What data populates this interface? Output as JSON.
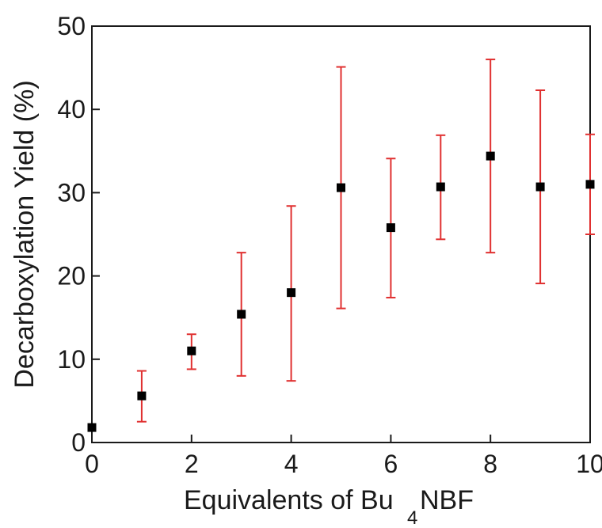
{
  "chart_data": {
    "type": "scatter",
    "title": "",
    "xlabel_main": "Equivalents of Bu",
    "xlabel_sub": "4",
    "xlabel_tail": "NBF",
    "ylabel": "Decarboxylation Yield (%)",
    "xlim": [
      0,
      10
    ],
    "ylim": [
      0,
      50
    ],
    "xticks": [
      "0",
      "2",
      "4",
      "6",
      "8",
      "10"
    ],
    "yticks": [
      "0",
      "10",
      "20",
      "30",
      "40",
      "50"
    ],
    "grid": false,
    "marker_color": "#000000",
    "error_bar_color": "#e03030",
    "points": [
      {
        "x": 0,
        "y": 1.8,
        "lo": 1.8,
        "hi": 1.8
      },
      {
        "x": 1,
        "y": 5.6,
        "lo": 2.5,
        "hi": 8.6
      },
      {
        "x": 2,
        "y": 11.0,
        "lo": 8.8,
        "hi": 13.0
      },
      {
        "x": 3,
        "y": 15.4,
        "lo": 8.0,
        "hi": 22.8
      },
      {
        "x": 4,
        "y": 18.0,
        "lo": 7.4,
        "hi": 28.4
      },
      {
        "x": 5,
        "y": 30.6,
        "lo": 16.1,
        "hi": 45.1
      },
      {
        "x": 6,
        "y": 25.8,
        "lo": 17.4,
        "hi": 34.1
      },
      {
        "x": 7,
        "y": 30.7,
        "lo": 24.4,
        "hi": 36.9
      },
      {
        "x": 8,
        "y": 34.4,
        "lo": 22.8,
        "hi": 46.0
      },
      {
        "x": 9,
        "y": 30.7,
        "lo": 19.1,
        "hi": 42.3
      },
      {
        "x": 10,
        "y": 31.0,
        "lo": 25.0,
        "hi": 37.0
      }
    ]
  }
}
